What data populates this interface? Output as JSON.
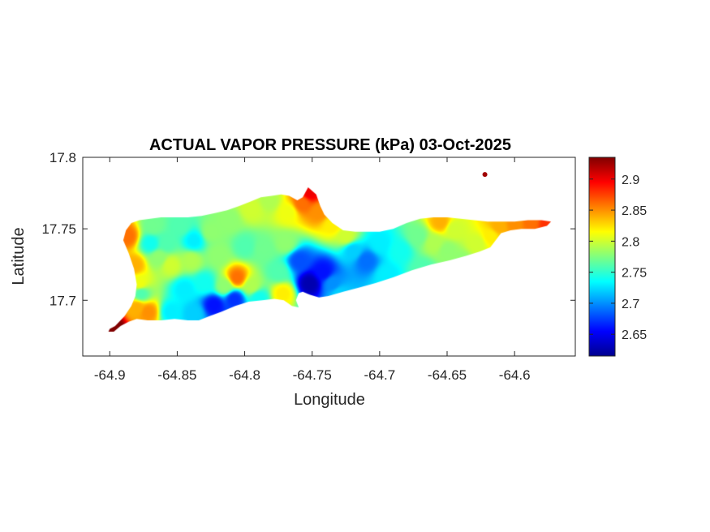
{
  "chart_data": {
    "type": "heatmap",
    "title": "ACTUAL VAPOR PRESSURE (kPa) 03-Oct-2025",
    "xlabel": "Longitude",
    "ylabel": "Latitude",
    "xlim": [
      -64.92,
      -64.555
    ],
    "ylim": [
      17.661,
      17.8
    ],
    "x_ticks": [
      -64.9,
      -64.85,
      -64.8,
      -64.75,
      -64.7,
      -64.65,
      -64.6
    ],
    "x_tick_labels": [
      "-64.9",
      "-64.85",
      "-64.8",
      "-64.75",
      "-64.7",
      "-64.65",
      "-64.6"
    ],
    "y_ticks": [
      17.7,
      17.75,
      17.8
    ],
    "y_tick_labels": [
      "17.7",
      "17.75",
      "17.8"
    ],
    "colorbar": {
      "colormap": "jet",
      "min": 2.615,
      "max": 2.935,
      "ticks": [
        2.65,
        2.7,
        2.75,
        2.8,
        2.85,
        2.9
      ],
      "tick_labels": [
        "2.65",
        "2.7",
        "2.75",
        "2.8",
        "2.85",
        "2.9"
      ]
    },
    "grid": false,
    "outline": [
      [
        -64.9,
        17.68
      ],
      [
        -64.896,
        17.682
      ],
      [
        -64.889,
        17.689
      ],
      [
        -64.884,
        17.696
      ],
      [
        -64.881,
        17.703
      ],
      [
        -64.88,
        17.711
      ],
      [
        -64.882,
        17.722
      ],
      [
        -64.886,
        17.733
      ],
      [
        -64.89,
        17.742
      ],
      [
        -64.888,
        17.749
      ],
      [
        -64.884,
        17.754
      ],
      [
        -64.878,
        17.756
      ],
      [
        -64.87,
        17.757
      ],
      [
        -64.862,
        17.758
      ],
      [
        -64.852,
        17.758
      ],
      [
        -64.842,
        17.758
      ],
      [
        -64.832,
        17.759
      ],
      [
        -64.822,
        17.761
      ],
      [
        -64.813,
        17.763
      ],
      [
        -64.804,
        17.766
      ],
      [
        -64.796,
        17.769
      ],
      [
        -64.788,
        17.772
      ],
      [
        -64.78,
        17.773
      ],
      [
        -64.773,
        17.774
      ],
      [
        -64.767,
        17.773
      ],
      [
        -64.761,
        17.77
      ],
      [
        -64.757,
        17.772
      ],
      [
        -64.753,
        17.779
      ],
      [
        -64.747,
        17.774
      ],
      [
        -64.744,
        17.766
      ],
      [
        -64.741,
        17.76
      ],
      [
        -64.735,
        17.754
      ],
      [
        -64.727,
        17.749
      ],
      [
        -64.718,
        17.748
      ],
      [
        -64.71,
        17.748
      ],
      [
        -64.7,
        17.748
      ],
      [
        -64.69,
        17.75
      ],
      [
        -64.68,
        17.754
      ],
      [
        -64.67,
        17.757
      ],
      [
        -64.66,
        17.758
      ],
      [
        -64.65,
        17.758
      ],
      [
        -64.64,
        17.757
      ],
      [
        -64.63,
        17.756
      ],
      [
        -64.62,
        17.755
      ],
      [
        -64.61,
        17.755
      ],
      [
        -64.6,
        17.755
      ],
      [
        -64.59,
        17.756
      ],
      [
        -64.58,
        17.756
      ],
      [
        -64.573,
        17.755
      ],
      [
        -64.576,
        17.752
      ],
      [
        -64.585,
        17.75
      ],
      [
        -64.595,
        17.75
      ],
      [
        -64.603,
        17.749
      ],
      [
        -64.61,
        17.747
      ],
      [
        -64.614,
        17.742
      ],
      [
        -64.618,
        17.737
      ],
      [
        -64.626,
        17.734
      ],
      [
        -64.636,
        17.731
      ],
      [
        -64.648,
        17.728
      ],
      [
        -64.662,
        17.725
      ],
      [
        -64.676,
        17.721
      ],
      [
        -64.69,
        17.716
      ],
      [
        -64.703,
        17.712
      ],
      [
        -64.715,
        17.709
      ],
      [
        -64.727,
        17.706
      ],
      [
        -64.738,
        17.703
      ],
      [
        -64.745,
        17.702
      ],
      [
        -64.752,
        17.704
      ],
      [
        -64.757,
        17.706
      ],
      [
        -64.76,
        17.705
      ],
      [
        -64.762,
        17.7
      ],
      [
        -64.76,
        17.695
      ],
      [
        -64.765,
        17.696
      ],
      [
        -64.771,
        17.7
      ],
      [
        -64.778,
        17.701
      ],
      [
        -64.787,
        17.7
      ],
      [
        -64.797,
        17.699
      ],
      [
        -64.807,
        17.696
      ],
      [
        -64.817,
        17.692
      ],
      [
        -64.826,
        17.689
      ],
      [
        -64.834,
        17.686
      ],
      [
        -64.842,
        17.686
      ],
      [
        -64.852,
        17.687
      ],
      [
        -64.862,
        17.686
      ],
      [
        -64.872,
        17.686
      ],
      [
        -64.88,
        17.687
      ],
      [
        -64.886,
        17.685
      ],
      [
        -64.892,
        17.682
      ],
      [
        -64.897,
        17.678
      ],
      [
        -64.901,
        17.678
      ]
    ],
    "islet": [
      -64.622,
      17.788
    ],
    "control_points": [
      [
        -64.898,
        17.681,
        2.94
      ],
      [
        -64.887,
        17.745,
        2.86
      ],
      [
        -64.882,
        17.725,
        2.84
      ],
      [
        -64.878,
        17.712,
        2.81
      ],
      [
        -64.88,
        17.695,
        2.84
      ],
      [
        -64.872,
        17.692,
        2.85
      ],
      [
        -64.868,
        17.752,
        2.77
      ],
      [
        -64.858,
        17.74,
        2.76
      ],
      [
        -64.848,
        17.752,
        2.76
      ],
      [
        -64.838,
        17.742,
        2.73
      ],
      [
        -64.855,
        17.725,
        2.8
      ],
      [
        -64.84,
        17.728,
        2.79
      ],
      [
        -64.825,
        17.748,
        2.78
      ],
      [
        -64.812,
        17.756,
        2.78
      ],
      [
        -64.795,
        17.764,
        2.8
      ],
      [
        -64.782,
        17.77,
        2.79
      ],
      [
        -64.768,
        17.762,
        2.81
      ],
      [
        -64.758,
        17.768,
        2.86
      ],
      [
        -64.752,
        17.776,
        2.9
      ],
      [
        -64.745,
        17.762,
        2.85
      ],
      [
        -64.735,
        17.753,
        2.82
      ],
      [
        -64.725,
        17.745,
        2.8
      ],
      [
        -64.806,
        17.716,
        2.86
      ],
      [
        -64.815,
        17.71,
        2.78
      ],
      [
        -64.795,
        17.71,
        2.79
      ],
      [
        -64.786,
        17.736,
        2.77
      ],
      [
        -64.8,
        17.738,
        2.76
      ],
      [
        -64.82,
        17.732,
        2.78
      ],
      [
        -64.83,
        17.712,
        2.74
      ],
      [
        -64.845,
        17.708,
        2.73
      ],
      [
        -64.823,
        17.697,
        2.66
      ],
      [
        -64.808,
        17.701,
        2.67
      ],
      [
        -64.838,
        17.691,
        2.72
      ],
      [
        -64.855,
        17.692,
        2.73
      ],
      [
        -64.79,
        17.702,
        2.74
      ],
      [
        -64.775,
        17.72,
        2.76
      ],
      [
        -64.77,
        17.74,
        2.78
      ],
      [
        -64.76,
        17.728,
        2.68
      ],
      [
        -64.752,
        17.712,
        2.63
      ],
      [
        -64.742,
        17.72,
        2.66
      ],
      [
        -64.73,
        17.705,
        2.72
      ],
      [
        -64.72,
        17.735,
        2.72
      ],
      [
        -64.71,
        17.728,
        2.69
      ],
      [
        -64.7,
        17.74,
        2.73
      ],
      [
        -64.695,
        17.718,
        2.73
      ],
      [
        -64.685,
        17.735,
        2.74
      ],
      [
        -64.672,
        17.745,
        2.77
      ],
      [
        -64.66,
        17.74,
        2.79
      ],
      [
        -64.668,
        17.722,
        2.76
      ],
      [
        -64.65,
        17.735,
        2.78
      ],
      [
        -64.645,
        17.75,
        2.8
      ],
      [
        -64.655,
        17.755,
        2.84
      ],
      [
        -64.64,
        17.728,
        2.78
      ],
      [
        -64.628,
        17.74,
        2.8
      ],
      [
        -64.618,
        17.745,
        2.82
      ],
      [
        -64.612,
        17.752,
        2.84
      ],
      [
        -64.6,
        17.754,
        2.85
      ],
      [
        -64.588,
        17.755,
        2.86
      ],
      [
        -64.576,
        17.754,
        2.88
      ],
      [
        -64.622,
        17.788,
        2.92
      ],
      [
        -64.877,
        17.705,
        2.76
      ],
      [
        -64.864,
        17.73,
        2.78
      ],
      [
        -64.87,
        17.74,
        2.74
      ],
      [
        -64.735,
        17.712,
        2.7
      ],
      [
        -64.772,
        17.705,
        2.82
      ]
    ]
  }
}
